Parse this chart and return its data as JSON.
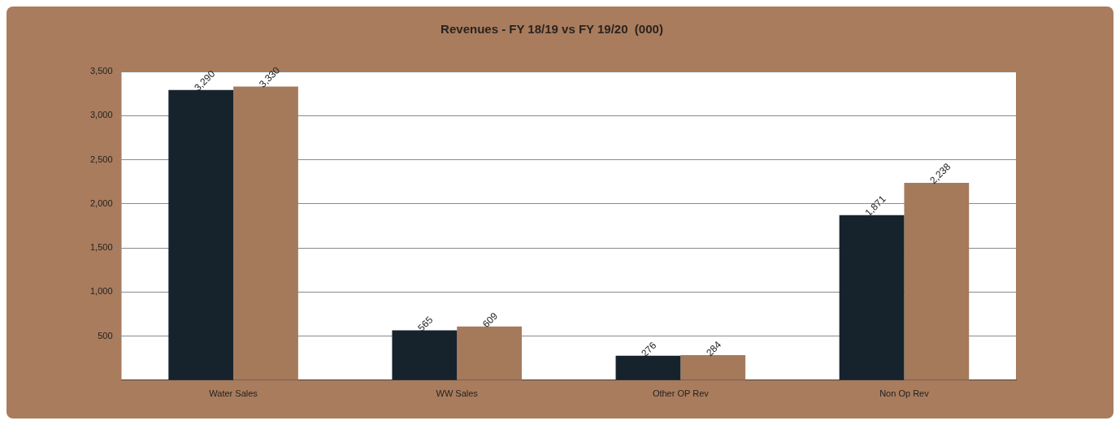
{
  "chart_data": {
    "type": "bar",
    "title": "Revenues - FY 18/19 vs FY 19/20  (000)",
    "categories": [
      "Water Sales",
      "WW Sales",
      "Other OP Rev",
      "Non Op Rev"
    ],
    "series": [
      {
        "color": "#16232d",
        "values": [
          3290,
          565,
          276,
          1871
        ],
        "value_labels": [
          "3,290",
          "565",
          "276",
          "1,871"
        ]
      },
      {
        "color": "#a57a5b",
        "values": [
          3330,
          609,
          284,
          2238
        ],
        "value_labels": [
          "3,330",
          "609",
          "284",
          "2,238"
        ]
      }
    ],
    "ylim": [
      0,
      3500
    ],
    "yticks": [
      {
        "value": 500,
        "label": "500"
      },
      {
        "value": 1000,
        "label": "1,000"
      },
      {
        "value": 1500,
        "label": "1,500"
      },
      {
        "value": 2000,
        "label": "2,000"
      },
      {
        "value": 2500,
        "label": "2,500"
      },
      {
        "value": 3000,
        "label": "3,000"
      },
      {
        "value": 3500,
        "label": "3,500"
      }
    ],
    "grid": "y",
    "legend": false
  }
}
